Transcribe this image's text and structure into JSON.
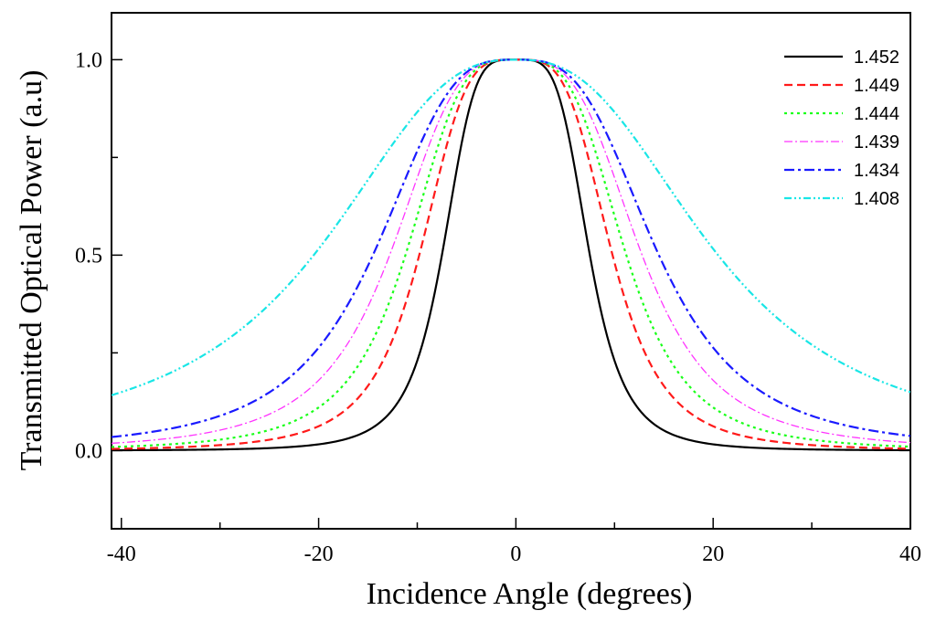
{
  "chart_data": {
    "type": "line",
    "xlabel": "Incidence Angle (degrees)",
    "ylabel": "Transmitted Optical Power (a.u)",
    "xlim": [
      -41,
      40
    ],
    "ylim": [
      -0.2,
      1.12
    ],
    "x_ticks": [
      -40,
      -20,
      0,
      20,
      40
    ],
    "x_tick_labels": [
      "-40",
      "-20",
      "0",
      "20",
      "40"
    ],
    "y_ticks": [
      0.0,
      0.5,
      1.0
    ],
    "y_tick_labels": [
      "0.0",
      "0.5",
      "1.0"
    ],
    "legend_position": "top-right",
    "series": [
      {
        "name": "1.452",
        "color": "#000000",
        "dash": "solid",
        "width_param_deg": 7.5,
        "shape_exponent": 4.2
      },
      {
        "name": "1.449",
        "color": "#ff1a1a",
        "dash": "dashed",
        "width_param_deg": 9.8,
        "shape_exponent": 3.8
      },
      {
        "name": "1.444",
        "color": "#1aff1a",
        "dash": "dotted",
        "width_param_deg": 11.2,
        "shape_exponent": 3.6
      },
      {
        "name": "1.439",
        "color": "#ff33ff",
        "dash": "dash-dot-thin",
        "width_param_deg": 12.8,
        "shape_exponent": 3.4
      },
      {
        "name": "1.434",
        "color": "#1a1aff",
        "dash": "dash-dot",
        "width_param_deg": 14.5,
        "shape_exponent": 3.2
      },
      {
        "name": "1.408",
        "color": "#19e6e6",
        "dash": "dash-dot-dot",
        "width_param_deg": 20.5,
        "shape_exponent": 2.6
      }
    ]
  }
}
